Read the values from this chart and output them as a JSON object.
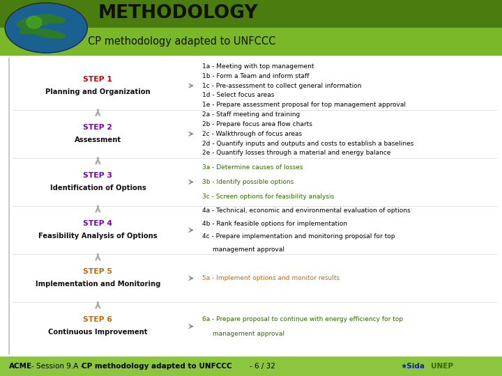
{
  "title1": "METHODOLOGY",
  "title2": "CP methodology adapted to UNFCCC",
  "header_top_color": "#4a7c10",
  "header_bot_color": "#7ab82a",
  "footer_color": "#8cc63f",
  "bg_color": "#ffffff",
  "steps": [
    {
      "label": "STEP 1",
      "sublabel": "Planning and Organization",
      "step_color": "#cc0000"
    },
    {
      "label": "STEP 2",
      "sublabel": "Assessment",
      "step_color": "#7700bb"
    },
    {
      "label": "STEP 3",
      "sublabel": "Identification of Options",
      "step_color": "#7700bb"
    },
    {
      "label": "STEP 4",
      "sublabel": "Feasibility Analysis of Options",
      "step_color": "#7700bb"
    },
    {
      "label": "STEP 5",
      "sublabel": "Implementation and Monitoring",
      "step_color": "#cc6600"
    },
    {
      "label": "STEP 6",
      "sublabel": "Continuous Improvement",
      "step_color": "#cc6600"
    }
  ],
  "details": [
    [
      "1a - Meeting with top management",
      "1b - Form a Team and inform staff",
      "1c - Pre-assessment to collect general information",
      "1d - Select focus areas",
      "1e - Prepare assessment proposal for top management approval"
    ],
    [
      "2a - Staff meeting and training",
      "2b - Prepare focus area flow charts",
      "2c - Walkthrough of focus areas",
      "2d - Quantify inputs and outputs and costs to establish a baselines",
      "2e - Quantify losses through a material and energy balance"
    ],
    [
      "3a - Determine causes of losses",
      "3b - Identify possible options",
      "3c - Screen options for feasibility analysis"
    ],
    [
      "4a - Technical, economic and environmental evaluation of options",
      "4b - Rank feasible options for implementation",
      "4c - Prepare implementation and monitoring proposal for top",
      "management approval"
    ],
    [
      "5a - Implement options and monitor results"
    ],
    [
      "6a - Prepare proposal to continue with energy efficiency for top",
      "management approval"
    ]
  ],
  "detail_colors": [
    "#000000",
    "#000000",
    "#336600",
    "#000000",
    "#cc6600",
    "#336600"
  ],
  "footer_text_normal": "- Session 9.A - ",
  "footer_text_bold1": "ACME",
  "footer_text_bold2": "CP methodology adapted to UNFCCC",
  "footer_text_end": "- 6 / 32"
}
